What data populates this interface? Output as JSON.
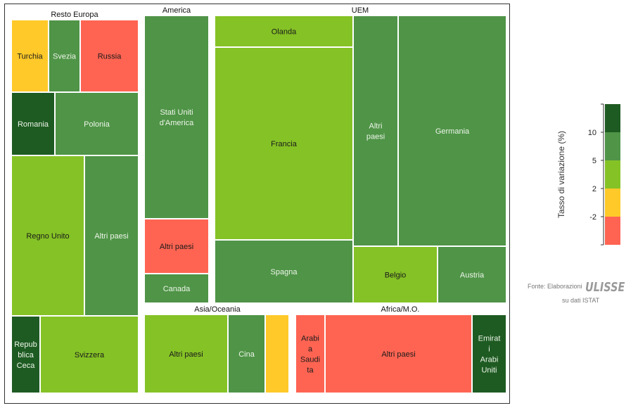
{
  "chart_data": {
    "type": "treemap",
    "groups": [
      {
        "name": "Resto Europa",
        "items": [
          {
            "label": "Turchia",
            "color_class": "-2 to 2"
          },
          {
            "label": "Svezia",
            "color_class": "5 to 10"
          },
          {
            "label": "Russia",
            "color_class": "below -2"
          },
          {
            "label": "Romania",
            "color_class": "above 10"
          },
          {
            "label": "Polonia",
            "color_class": "5 to 10"
          },
          {
            "label": "Regno Unito",
            "color_class": "2 to 5"
          },
          {
            "label": "Altri paesi",
            "color_class": "5 to 10"
          },
          {
            "label": "Repubblica Ceca",
            "color_class": "above 10"
          },
          {
            "label": "Svizzera",
            "color_class": "2 to 5"
          }
        ]
      },
      {
        "name": "America",
        "items": [
          {
            "label": "Stati Uniti d'America",
            "color_class": "5 to 10"
          },
          {
            "label": "Altri paesi",
            "color_class": "below -2"
          },
          {
            "label": "Canada",
            "color_class": "5 to 10"
          }
        ]
      },
      {
        "name": "UEM",
        "items": [
          {
            "label": "Olanda",
            "color_class": "2 to 5"
          },
          {
            "label": "Francia",
            "color_class": "2 to 5"
          },
          {
            "label": "Spagna",
            "color_class": "5 to 10"
          },
          {
            "label": "Altri paesi",
            "color_class": "5 to 10"
          },
          {
            "label": "Germania",
            "color_class": "5 to 10"
          },
          {
            "label": "Belgio",
            "color_class": "2 to 5"
          },
          {
            "label": "Austria",
            "color_class": "5 to 10"
          }
        ]
      },
      {
        "name": "Asia/Oceania",
        "items": [
          {
            "label": "Altri paesi",
            "color_class": "2 to 5"
          },
          {
            "label": "Cina",
            "color_class": "5 to 10"
          },
          {
            "label": "",
            "color_class": "-2 to 2"
          }
        ]
      },
      {
        "name": "Africa/M.O.",
        "items": [
          {
            "label": "Arabia Saudita",
            "color_class": "below -2"
          },
          {
            "label": "Altri paesi",
            "color_class": "below -2"
          },
          {
            "label": "Emirati Arabi Uniti",
            "color_class": "above 10"
          }
        ]
      }
    ],
    "legend": {
      "title": "Tasso di variazione (%)",
      "ticks": [
        "10",
        "5",
        "2",
        "-2"
      ],
      "colors": [
        "#1e5b22",
        "#4f9447",
        "#85c226",
        "#ffc929",
        "#ff6452"
      ]
    }
  },
  "colors": {
    "below -2": "#ff6452",
    "-2 to 2": "#ffc929",
    "2 to 5": "#85c226",
    "5 to 10": "#4f9447",
    "above 10": "#1e5b22"
  },
  "source": {
    "label": "Fonte: Elaborazioni",
    "logo": "ULISSE",
    "sub": "su dati ISTAT"
  }
}
